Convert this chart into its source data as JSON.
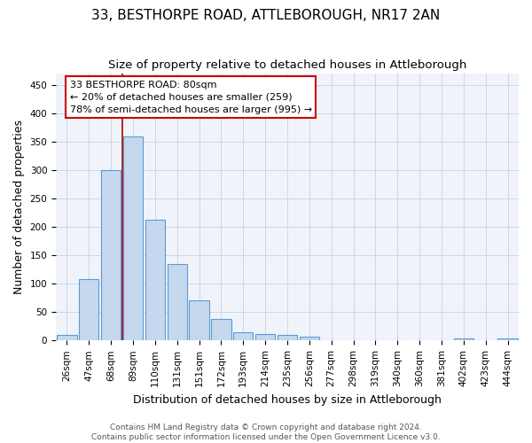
{
  "title": "33, BESTHORPE ROAD, ATTLEBOROUGH, NR17 2AN",
  "subtitle": "Size of property relative to detached houses in Attleborough",
  "xlabel": "Distribution of detached houses by size in Attleborough",
  "ylabel": "Number of detached properties",
  "categories": [
    "26sqm",
    "47sqm",
    "68sqm",
    "89sqm",
    "110sqm",
    "131sqm",
    "151sqm",
    "172sqm",
    "193sqm",
    "214sqm",
    "235sqm",
    "256sqm",
    "277sqm",
    "298sqm",
    "319sqm",
    "340sqm",
    "360sqm",
    "381sqm",
    "402sqm",
    "423sqm",
    "444sqm"
  ],
  "values": [
    10,
    108,
    300,
    360,
    213,
    135,
    70,
    38,
    15,
    12,
    10,
    6,
    0,
    0,
    0,
    0,
    0,
    0,
    4,
    0,
    4
  ],
  "bar_color": "#c5d8ee",
  "bar_edge_color": "#5b9bd5",
  "bar_edge_width": 0.8,
  "red_line_x": 2.5,
  "annotation_title": "33 BESTHORPE ROAD: 80sqm",
  "annotation_line1": "← 20% of detached houses are smaller (259)",
  "annotation_line2": "78% of semi-detached houses are larger (995) →",
  "annotation_box_facecolor": "#ffffff",
  "annotation_box_edgecolor": "#cc0000",
  "ylim": [
    0,
    470
  ],
  "yticks": [
    0,
    50,
    100,
    150,
    200,
    250,
    300,
    350,
    400,
    450
  ],
  "footer_line1": "Contains HM Land Registry data © Crown copyright and database right 2024.",
  "footer_line2": "Contains public sector information licensed under the Open Government Licence v3.0.",
  "background_color": "#ffffff",
  "plot_bg_color": "#f0f4fa",
  "grid_color": "#c8d8e8",
  "title_fontsize": 11,
  "subtitle_fontsize": 9.5,
  "tick_fontsize": 7.5,
  "ylabel_fontsize": 9,
  "xlabel_fontsize": 9,
  "annotation_fontsize": 8,
  "footer_fontsize": 6.5
}
